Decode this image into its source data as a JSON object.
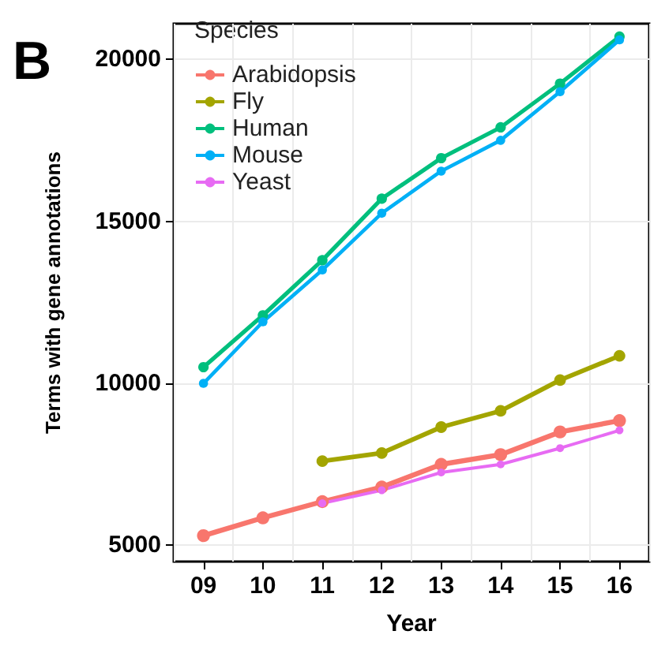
{
  "chart_data": {
    "type": "line",
    "xlabel": "Year",
    "ylabel": "Terms with gene annotations",
    "legend_title": "Species",
    "annotations": [
      "B"
    ],
    "categories": [
      "09",
      "10",
      "11",
      "12",
      "13",
      "14",
      "15",
      "16"
    ],
    "series": [
      {
        "name": "Arabidopsis",
        "color": "#f8766d",
        "values": [
          5300,
          5850,
          6350,
          6800,
          7500,
          7800,
          8500,
          8850
        ]
      },
      {
        "name": "Fly",
        "color": "#a3a500",
        "values": [
          null,
          null,
          7600,
          7850,
          8650,
          9150,
          10100,
          10850
        ]
      },
      {
        "name": "Human",
        "color": "#00bf7d",
        "values": [
          10500,
          12100,
          13800,
          15700,
          16950,
          17900,
          19250,
          20700
        ]
      },
      {
        "name": "Mouse",
        "color": "#00b0f6",
        "values": [
          10000,
          11900,
          13500,
          15250,
          16550,
          17500,
          19000,
          20600
        ]
      },
      {
        "name": "Yeast",
        "color": "#e76bf3",
        "values": [
          null,
          null,
          6300,
          6700,
          7250,
          7500,
          8000,
          8550
        ]
      }
    ],
    "ylim": [
      4500,
      21100
    ],
    "yticks": [
      5000,
      10000,
      15000,
      20000
    ],
    "grid": true,
    "legend": "top left",
    "marker": "circle",
    "line_style": "solid"
  }
}
